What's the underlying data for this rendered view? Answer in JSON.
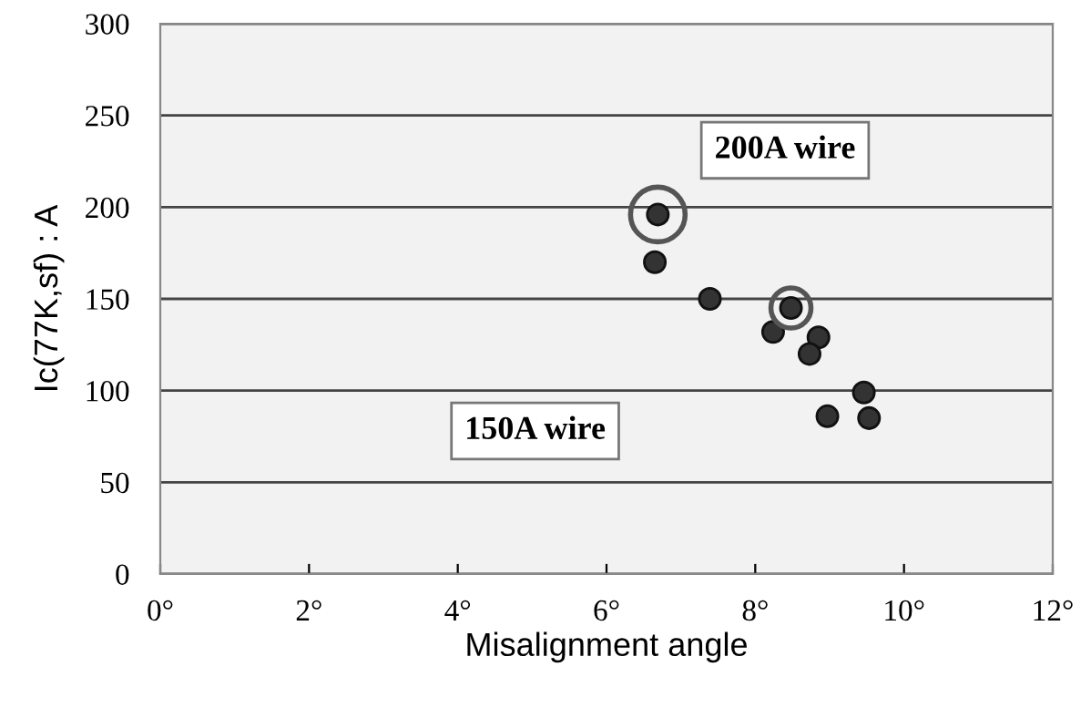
{
  "chart_data": {
    "type": "scatter",
    "xlabel": "Misalignment angle",
    "ylabel": "Ic(77K,sf) : A",
    "annotations": [
      "200A wire",
      "150A wire"
    ],
    "x": [
      6.69,
      6.65,
      7.39,
      8.48,
      8.24,
      8.85,
      8.73,
      9.46,
      8.97,
      9.53
    ],
    "series": [
      {
        "color": "#333333",
        "values": [
          196,
          170,
          150,
          145,
          132,
          129,
          120,
          99,
          86,
          85
        ]
      }
    ],
    "xlim": [
      0,
      12
    ],
    "xticks": [
      {
        "value": 0,
        "label": "0°"
      },
      {
        "value": 2,
        "label": "2°"
      },
      {
        "value": 4,
        "label": "4°"
      },
      {
        "value": 6,
        "label": "6°"
      },
      {
        "value": 8,
        "label": "8°"
      },
      {
        "value": 10,
        "label": "10°"
      },
      {
        "value": 12,
        "label": "12°"
      }
    ],
    "ylim": [
      0,
      300
    ],
    "yticks": [
      0,
      50,
      100,
      150,
      200,
      250,
      300
    ],
    "grid": "y",
    "marker": "circle",
    "legend": false
  }
}
